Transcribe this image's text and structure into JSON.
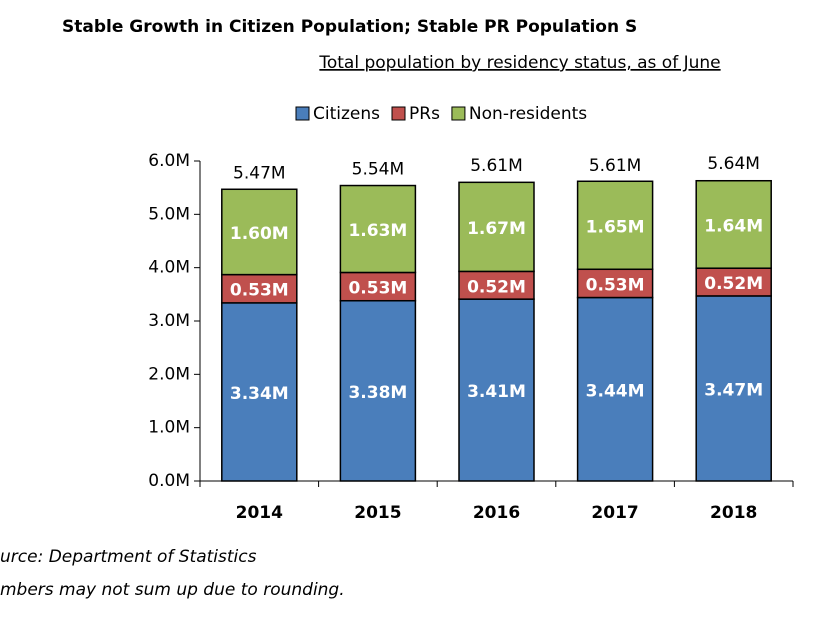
{
  "chart_data": {
    "type": "stacked_bar",
    "title": "Stable Growth in Citizen Population; Stable PR Population S",
    "subtitle": "Total population by residency status, as of June",
    "categories": [
      "2014",
      "2015",
      "2016",
      "2017",
      "2018"
    ],
    "series": [
      {
        "name": "Citizens",
        "color": "#4a7ebb",
        "values": [
          3.34,
          3.38,
          3.41,
          3.44,
          3.47
        ],
        "value_labels": [
          "3.34M",
          "3.38M",
          "3.41M",
          "3.44M",
          "3.47M"
        ]
      },
      {
        "name": "PRs",
        "color": "#c0504d",
        "values": [
          0.53,
          0.53,
          0.52,
          0.53,
          0.52
        ],
        "value_labels": [
          "0.53M",
          "0.53M",
          "0.52M",
          "0.53M",
          "0.52M"
        ]
      },
      {
        "name": "Non-residents",
        "color": "#9bbb59",
        "values": [
          1.6,
          1.63,
          1.67,
          1.65,
          1.64
        ],
        "value_labels": [
          "1.60M",
          "1.63M",
          "1.67M",
          "1.65M",
          "1.64M"
        ]
      }
    ],
    "totals": {
      "values": [
        5.47,
        5.54,
        5.61,
        5.61,
        5.64
      ],
      "labels": [
        "5.47M",
        "5.54M",
        "5.61M",
        "5.61M",
        "5.64M"
      ]
    },
    "ylim": [
      0,
      6
    ],
    "yticks": [
      {
        "value": 0,
        "label": "0.0M"
      },
      {
        "value": 1,
        "label": "1.0M"
      },
      {
        "value": 2,
        "label": "2.0M"
      },
      {
        "value": 3,
        "label": "3.0M"
      },
      {
        "value": 4,
        "label": "4.0M"
      },
      {
        "value": 5,
        "label": "5.0M"
      },
      {
        "value": 6,
        "label": "6.0M"
      }
    ],
    "legend": "top",
    "notes": [
      "urce: Department of Statistics",
      "mbers may not sum up due to rounding."
    ]
  }
}
